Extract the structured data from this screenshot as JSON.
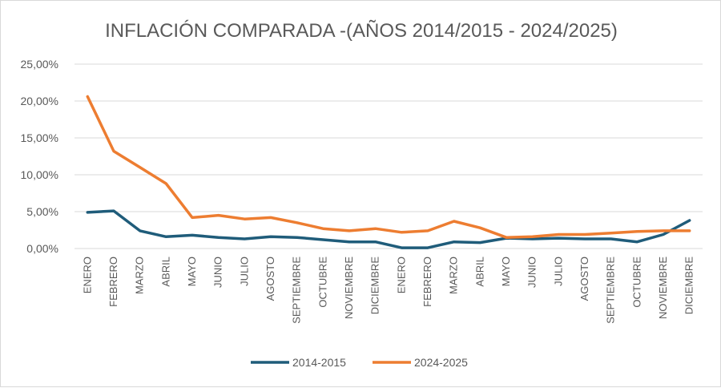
{
  "chart_data": {
    "type": "line",
    "title": "INFLACIÓN COMPARADA -(AÑOS 2014/2015 - 2024/2025)",
    "categories": [
      "ENERO",
      "FEBRERO",
      "MARZO",
      "ABRIL",
      "MAYO",
      "JUNIO",
      "JULIO",
      "AGOSTO",
      "SEPTIEMBRE",
      "OCTUBRE",
      "NOVIEMBRE",
      "DICIEMBRE",
      "ENERO",
      "FEBRERO",
      "MARZO",
      "ABRIL",
      "MAYO",
      "JUNIO",
      "JULIO",
      "AGOSTO",
      "SEPTIEMBRE",
      "OCTUBRE",
      "NOVIEMBRE",
      "DICIEMBRE"
    ],
    "yticks": [
      "0,00%",
      "5,00%",
      "10,00%",
      "15,00%",
      "20,00%",
      "25,00%"
    ],
    "ylim": [
      0,
      25
    ],
    "grid": true,
    "legend_position": "bottom",
    "series": [
      {
        "name": "2014-2015",
        "color": "#1f5c7a",
        "values": [
          4.9,
          5.1,
          2.4,
          1.6,
          1.8,
          1.5,
          1.3,
          1.6,
          1.5,
          1.2,
          0.9,
          0.9,
          0.1,
          0.1,
          0.9,
          0.8,
          1.4,
          1.3,
          1.4,
          1.3,
          1.3,
          0.9,
          1.9,
          3.8
        ]
      },
      {
        "name": "2024-2025",
        "color": "#ed7d31",
        "values": [
          20.6,
          13.2,
          11.0,
          8.8,
          4.2,
          4.5,
          4.0,
          4.2,
          3.5,
          2.7,
          2.4,
          2.7,
          2.2,
          2.4,
          3.7,
          2.8,
          1.5,
          1.6,
          1.9,
          1.9,
          2.1,
          2.3,
          2.4,
          2.4
        ]
      }
    ]
  }
}
